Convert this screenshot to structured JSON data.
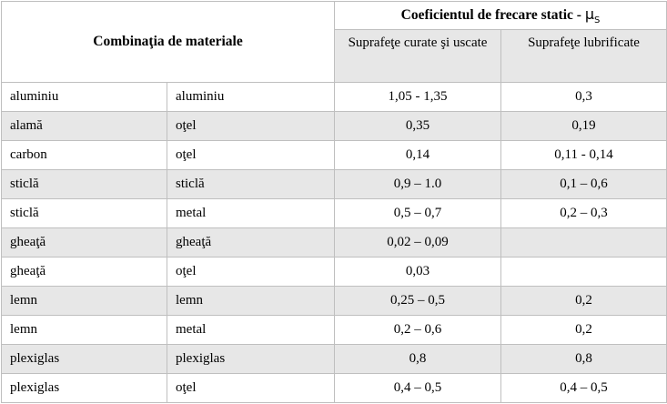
{
  "header": {
    "combination": "Combinaţia de materiale",
    "coefficient": "Coeficientul de frecare static - ",
    "mu": "µ",
    "mu_sub": "S",
    "clean_dry": "Suprafeţe curate şi uscate",
    "lubricated": "Suprafeţe lubrificate"
  },
  "rows": [
    {
      "m1": "aluminiu",
      "m2": "aluminiu",
      "dry": "1,05 - 1,35",
      "lub": "0,3"
    },
    {
      "m1": "alamă",
      "m2": "oţel",
      "dry": "0,35",
      "lub": "0,19"
    },
    {
      "m1": "carbon",
      "m2": "oţel",
      "dry": "0,14",
      "lub": "0,11 - 0,14"
    },
    {
      "m1": "sticlă",
      "m2": "sticlă",
      "dry": "0,9 – 1.0",
      "lub": "0,1 – 0,6"
    },
    {
      "m1": "sticlă",
      "m2": "metal",
      "dry": "0,5 – 0,7",
      "lub": "0,2 – 0,3"
    },
    {
      "m1": "gheaţă",
      "m2": "gheaţă",
      "dry": "0,02 – 0,09",
      "lub": ""
    },
    {
      "m1": "gheaţă",
      "m2": "oţel",
      "dry": "0,03",
      "lub": ""
    },
    {
      "m1": "lemn",
      "m2": "lemn",
      "dry": "0,25 – 0,5",
      "lub": "0,2"
    },
    {
      "m1": "lemn",
      "m2": "metal",
      "dry": "0,2 – 0,6",
      "lub": "0,2"
    },
    {
      "m1": "plexiglas",
      "m2": "plexiglas",
      "dry": "0,8",
      "lub": "0,8"
    },
    {
      "m1": "plexiglas",
      "m2": "oţel",
      "dry": "0,4 – 0,5",
      "lub": "0,4 – 0,5"
    }
  ]
}
